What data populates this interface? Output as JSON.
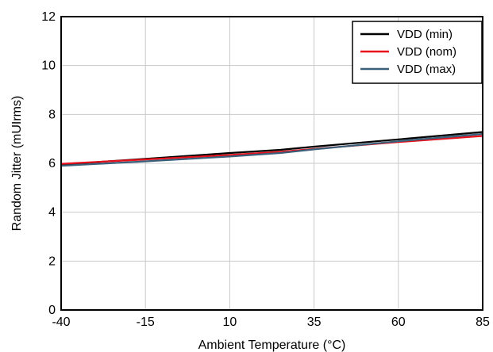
{
  "chart_data": {
    "type": "line",
    "xlabel": "Ambient Temperature (°C)",
    "ylabel": "Random Jitter (mUIrms)",
    "xlim": [
      -40,
      85
    ],
    "ylim": [
      0,
      12
    ],
    "x_ticks": [
      -40,
      -15,
      10,
      35,
      60,
      85
    ],
    "y_ticks": [
      0,
      2,
      4,
      6,
      8,
      10,
      12
    ],
    "x_tick_labels": [
      "-40",
      "-15",
      "10",
      "35",
      "60",
      "85"
    ],
    "y_tick_labels": [
      "0",
      "2",
      "4",
      "6",
      "8",
      "10",
      "12"
    ],
    "grid": true,
    "legend_position": "top-right",
    "series": [
      {
        "name": "VDD (min)",
        "color": "#000000",
        "x": [
          -40,
          -15,
          10,
          25,
          35,
          60,
          85
        ],
        "y": [
          5.95,
          6.18,
          6.42,
          6.55,
          6.68,
          6.98,
          7.28
        ]
      },
      {
        "name": "VDD (nom)",
        "color": "#e8101a",
        "x": [
          -40,
          -15,
          10,
          25,
          35,
          60,
          85
        ],
        "y": [
          5.98,
          6.16,
          6.34,
          6.47,
          6.59,
          6.87,
          7.12
        ]
      },
      {
        "name": "VDD (max)",
        "color": "#3a5f7a",
        "x": [
          -40,
          -15,
          10,
          25,
          35,
          60,
          85
        ],
        "y": [
          5.9,
          6.08,
          6.28,
          6.42,
          6.57,
          6.9,
          7.2
        ]
      }
    ]
  }
}
